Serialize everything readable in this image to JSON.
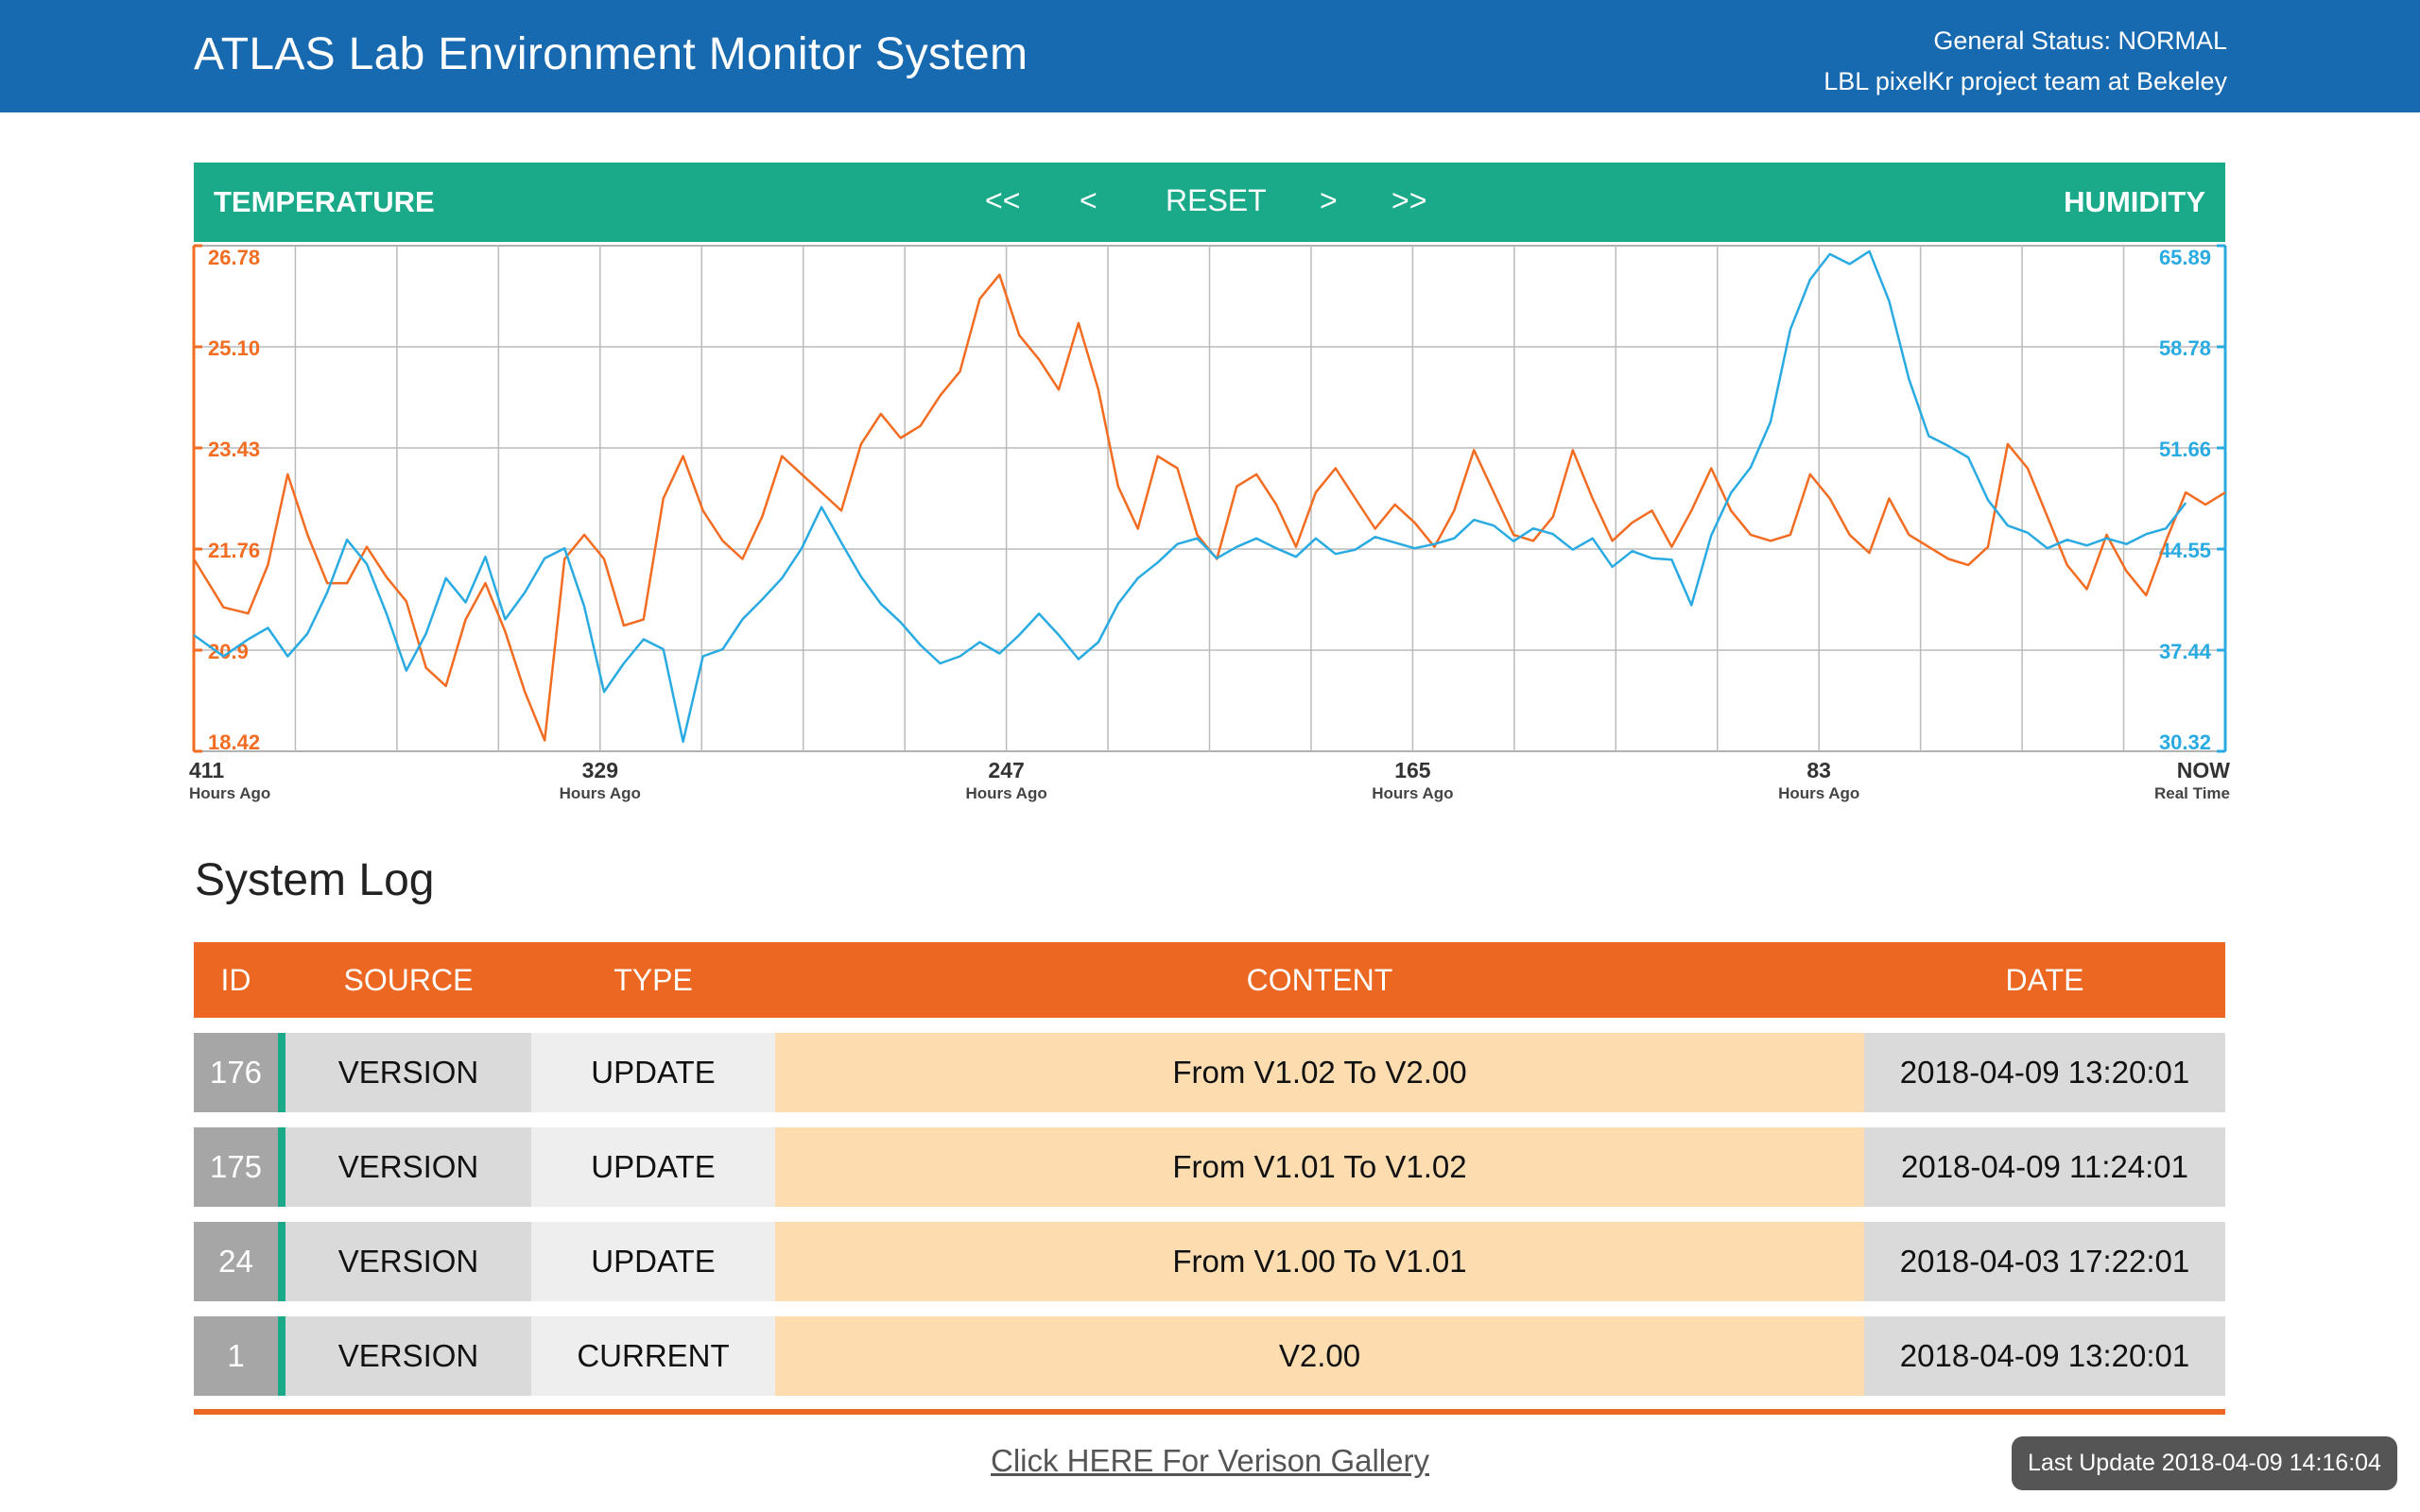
{
  "header": {
    "title": "ATLAS Lab Environment Monitor System",
    "status": "General Status: NORMAL",
    "team": "LBL pixelKr project team at Bekeley",
    "color": "#1769b0"
  },
  "chart_nav": {
    "left_label": "TEMPERATURE",
    "right_label": "HUMIDITY",
    "first": "<<",
    "prev": "<",
    "reset": "RESET",
    "next": ">",
    "last": ">>",
    "color": "#1aaa8a"
  },
  "chart_data": {
    "type": "line",
    "xlabel": "",
    "x_ticks": [
      {
        "value": "411",
        "sub": "Hours Ago"
      },
      {
        "value": "329",
        "sub": "Hours Ago"
      },
      {
        "value": "247",
        "sub": "Hours Ago"
      },
      {
        "value": "165",
        "sub": "Hours Ago"
      },
      {
        "value": "83",
        "sub": "Hours Ago"
      },
      {
        "value": "NOW",
        "sub": "Real Time"
      }
    ],
    "x_range": [
      411,
      0
    ],
    "grid": true,
    "left_axis": {
      "label": "TEMPERATURE",
      "ticks": [
        "18.42",
        "20.9",
        "21.76",
        "23.43",
        "25.10",
        "26.78"
      ],
      "ylim": [
        18.42,
        26.78
      ],
      "color": "#f26c22"
    },
    "right_axis": {
      "label": "HUMIDITY",
      "ticks": [
        "30.32",
        "37.44",
        "44.55",
        "51.66",
        "58.78",
        "65.89"
      ],
      "ylim": [
        30.32,
        65.89
      ],
      "color": "#29abe2"
    },
    "series": [
      {
        "name": "TEMPERATURE",
        "axis": "left",
        "color": "#f26c22",
        "hours_ago": [
          411,
          405,
          400,
          396,
          392,
          388,
          384,
          380,
          376,
          372,
          368,
          364,
          360,
          356,
          352,
          348,
          344,
          340,
          336,
          332,
          328,
          324,
          320,
          316,
          312,
          308,
          304,
          300,
          296,
          292,
          288,
          284,
          280,
          276,
          272,
          268,
          264,
          260,
          256,
          252,
          248,
          244,
          240,
          236,
          232,
          228,
          224,
          220,
          216,
          212,
          208,
          204,
          200,
          196,
          192,
          188,
          184,
          180,
          176,
          172,
          168,
          164,
          160,
          156,
          152,
          148,
          144,
          140,
          136,
          132,
          128,
          124,
          120,
          116,
          112,
          108,
          104,
          100,
          96,
          92,
          88,
          84,
          80,
          76,
          72,
          68,
          64,
          60,
          56,
          52,
          48,
          44,
          40,
          36,
          32,
          28,
          24,
          20,
          16,
          12,
          8,
          4,
          0
        ],
        "values": [
          21.6,
          20.8,
          20.7,
          21.5,
          23.0,
          22.0,
          21.2,
          21.2,
          21.8,
          21.3,
          20.9,
          19.8,
          19.5,
          20.6,
          21.2,
          20.4,
          19.4,
          18.6,
          21.6,
          22.0,
          21.6,
          20.5,
          20.6,
          22.6,
          23.3,
          22.4,
          21.9,
          21.6,
          22.3,
          23.3,
          23.0,
          22.7,
          22.4,
          23.5,
          24.0,
          23.6,
          23.8,
          24.3,
          24.7,
          25.9,
          26.3,
          25.3,
          24.9,
          24.4,
          25.5,
          24.4,
          22.8,
          22.1,
          23.3,
          23.1,
          22.0,
          21.6,
          22.8,
          23.0,
          22.5,
          21.8,
          22.7,
          23.1,
          22.6,
          22.1,
          22.5,
          22.2,
          21.8,
          22.4,
          23.4,
          22.7,
          22.0,
          21.9,
          22.3,
          23.4,
          22.6,
          21.9,
          22.2,
          22.4,
          21.8,
          22.4,
          23.1,
          22.4,
          22.0,
          21.9,
          22.0,
          23.0,
          22.6,
          22.0,
          21.7,
          22.6,
          22.0,
          21.8,
          21.6,
          21.5,
          21.8,
          23.5,
          23.1,
          22.3,
          21.5,
          21.1,
          22.0,
          21.4,
          21.0,
          21.9,
          22.7,
          22.5,
          22.7
        ]
      },
      {
        "name": "HUMIDITY",
        "axis": "right",
        "color": "#29abe2",
        "hours_ago": [
          411,
          405,
          400,
          396,
          392,
          388,
          384,
          380,
          376,
          372,
          368,
          364,
          360,
          356,
          352,
          348,
          344,
          340,
          336,
          332,
          328,
          324,
          320,
          316,
          312,
          308,
          304,
          300,
          296,
          292,
          288,
          284,
          280,
          276,
          272,
          268,
          264,
          260,
          256,
          252,
          248,
          244,
          240,
          236,
          232,
          228,
          224,
          220,
          216,
          212,
          208,
          204,
          200,
          196,
          192,
          188,
          184,
          180,
          176,
          172,
          168,
          164,
          160,
          156,
          152,
          148,
          144,
          140,
          136,
          132,
          128,
          124,
          120,
          116,
          112,
          108,
          104,
          100,
          96,
          92,
          88,
          84,
          80,
          76,
          72,
          68,
          64,
          60,
          56,
          52,
          48,
          44,
          40,
          36,
          32,
          28,
          24,
          20,
          16,
          12,
          8,
          4,
          0
        ],
        "values": [
          38.5,
          37.0,
          38.2,
          39.0,
          37.0,
          38.6,
          41.5,
          45.2,
          43.5,
          40.0,
          36.0,
          38.6,
          42.5,
          40.8,
          44.0,
          39.6,
          41.5,
          43.9,
          44.6,
          40.5,
          34.5,
          36.5,
          38.2,
          37.5,
          31.0,
          37.0,
          37.5,
          39.6,
          41.0,
          42.5,
          44.6,
          47.5,
          45.0,
          42.6,
          40.7,
          39.4,
          37.8,
          36.5,
          37.0,
          38.0,
          37.2,
          38.5,
          40.0,
          38.5,
          36.8,
          38.0,
          40.7,
          42.5,
          43.6,
          44.9,
          45.3,
          43.9,
          44.7,
          45.3,
          44.6,
          44.0,
          45.3,
          44.2,
          44.5,
          45.4,
          45.0,
          44.6,
          44.9,
          45.3,
          46.6,
          46.2,
          45.1,
          46.0,
          45.6,
          44.5,
          45.3,
          43.3,
          44.4,
          43.9,
          43.8,
          40.6,
          45.5,
          48.5,
          50.3,
          53.5,
          60.0,
          63.5,
          65.3,
          64.6,
          65.5,
          62.0,
          56.5,
          52.5,
          51.8,
          51.0,
          48.0,
          46.2,
          45.7,
          44.6,
          45.2,
          44.8,
          45.3,
          44.9,
          45.6,
          46.0,
          47.8
        ]
      }
    ]
  },
  "log": {
    "title": "System Log",
    "columns": [
      "ID",
      "SOURCE",
      "TYPE",
      "CONTENT",
      "DATE"
    ],
    "rows": [
      {
        "id": "176",
        "source": "VERSION",
        "type": "UPDATE",
        "content": "From V1.02 To V2.00",
        "date": "2018-04-09 13:20:01"
      },
      {
        "id": "175",
        "source": "VERSION",
        "type": "UPDATE",
        "content": "From V1.01 To V1.02",
        "date": "2018-04-09 11:24:01"
      },
      {
        "id": "24",
        "source": "VERSION",
        "type": "UPDATE",
        "content": "From V1.00 To V1.01",
        "date": "2018-04-03 17:22:01"
      },
      {
        "id": "1",
        "source": "VERSION",
        "type": "CURRENT",
        "content": "V2.00",
        "date": "2018-04-09 13:20:01"
      }
    ],
    "accent": "#ec6721"
  },
  "footer": {
    "gallery_link": "Click HERE For Verison Gallery",
    "last_update": "Last Update 2018-04-09 14:16:04"
  }
}
